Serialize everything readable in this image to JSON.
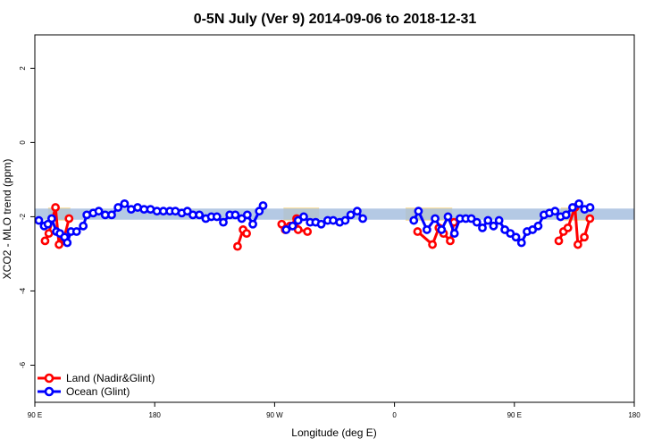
{
  "chart_data": {
    "type": "line",
    "title": "0-5N July (Ver 9)   2014-09-06 to 2018-12-31",
    "xlabel": "Longitude (deg E)",
    "ylabel": "XCO2 - MLO trend (ppm)",
    "xlim": [
      -90,
      180
    ],
    "ylim": [
      -7,
      2.9
    ],
    "xticks": [
      {
        "value": -90,
        "label": "90 E"
      },
      {
        "value": -36,
        "label": "180"
      },
      {
        "value": 18,
        "label": "90 W"
      },
      {
        "value": 72,
        "label": "0"
      },
      {
        "value": 126,
        "label": "90 E"
      },
      {
        "value": 180,
        "label": "180"
      }
    ],
    "yticks": [
      -6,
      -4,
      -2,
      0,
      2
    ],
    "grid": false,
    "legend": {
      "position": "bottom-left"
    },
    "band": {
      "ymin": -2.08,
      "ymax": -1.78,
      "color": "#a7bfdf"
    },
    "highlight_ranges": [
      [
        -84,
        -74
      ],
      [
        22,
        38
      ],
      [
        77,
        98
      ],
      [
        147,
        160
      ]
    ],
    "highlight_color": "#f9d98c",
    "series": [
      {
        "name": "Land (Nadir&Glint)",
        "color": "#ff0000",
        "points": [
          [
            -85.4,
            -2.65
          ],
          [
            -83.7,
            -2.45
          ],
          [
            -80.7,
            -1.75
          ],
          [
            -79.1,
            -2.75
          ],
          [
            -76.9,
            -2.6
          ],
          [
            -74.6,
            -2.05
          ],
          [
            1.3,
            -2.8
          ],
          [
            3.8,
            -2.35
          ],
          [
            5.4,
            -2.45
          ],
          [
            21.2,
            -2.2
          ],
          [
            22.8,
            -2.35
          ],
          [
            24.9,
            -2.25
          ],
          [
            27.9,
            -2.05
          ],
          [
            28.6,
            -2.35
          ],
          [
            32.8,
            -2.4
          ],
          [
            82.4,
            -2.4
          ],
          [
            89.1,
            -2.75
          ],
          [
            92.0,
            -2.3
          ],
          [
            94.1,
            -2.45
          ],
          [
            97.1,
            -2.65
          ],
          [
            98.8,
            -2.15
          ],
          [
            146.0,
            -2.65
          ],
          [
            148.1,
            -2.4
          ],
          [
            150.1,
            -2.3
          ],
          [
            153.3,
            -1.75
          ],
          [
            154.6,
            -2.75
          ],
          [
            157.5,
            -2.55
          ],
          [
            160.0,
            -2.05
          ]
        ]
      },
      {
        "name": "Ocean (Glint)",
        "color": "#0000ff",
        "points": [
          [
            -88.2,
            -2.1
          ],
          [
            -85.8,
            -2.25
          ],
          [
            -84.1,
            -2.2
          ],
          [
            -82.4,
            -2.05
          ],
          [
            -80.3,
            -2.4
          ],
          [
            -78.7,
            -2.45
          ],
          [
            -76.6,
            -2.55
          ],
          [
            -75.4,
            -2.7
          ],
          [
            -73.7,
            -2.4
          ],
          [
            -71.2,
            -2.4
          ],
          [
            -68.2,
            -2.25
          ],
          [
            -66.6,
            -1.95
          ],
          [
            -63.7,
            -1.9
          ],
          [
            -61.2,
            -1.85
          ],
          [
            -58.3,
            -1.95
          ],
          [
            -55.4,
            -1.95
          ],
          [
            -52.5,
            -1.75
          ],
          [
            -49.6,
            -1.65
          ],
          [
            -46.6,
            -1.8
          ],
          [
            -43.7,
            -1.75
          ],
          [
            -40.8,
            -1.8
          ],
          [
            -37.9,
            -1.8
          ],
          [
            -35.0,
            -1.85
          ],
          [
            -32.1,
            -1.85
          ],
          [
            -29.2,
            -1.85
          ],
          [
            -26.7,
            -1.85
          ],
          [
            -23.8,
            -1.9
          ],
          [
            -21.3,
            -1.85
          ],
          [
            -18.8,
            -1.95
          ],
          [
            -15.9,
            -1.95
          ],
          [
            -13.0,
            -2.05
          ],
          [
            -10.5,
            -2.0
          ],
          [
            -8.0,
            -2.0
          ],
          [
            -5.1,
            -2.15
          ],
          [
            -2.2,
            -1.95
          ],
          [
            0.3,
            -1.95
          ],
          [
            3.2,
            -2.05
          ],
          [
            5.7,
            -1.95
          ],
          [
            8.2,
            -2.2
          ],
          [
            11.1,
            -1.85
          ],
          [
            12.8,
            -1.7
          ],
          [
            23.2,
            -2.35
          ],
          [
            26.1,
            -2.25
          ],
          [
            28.6,
            -2.1
          ],
          [
            31.1,
            -2.0
          ],
          [
            34.0,
            -2.15
          ],
          [
            36.5,
            -2.15
          ],
          [
            39.0,
            -2.2
          ],
          [
            41.9,
            -2.1
          ],
          [
            44.4,
            -2.1
          ],
          [
            47.3,
            -2.15
          ],
          [
            49.8,
            -2.1
          ],
          [
            52.3,
            -1.95
          ],
          [
            55.2,
            -1.85
          ],
          [
            57.7,
            -2.05
          ],
          [
            80.7,
            -2.1
          ],
          [
            82.8,
            -1.85
          ],
          [
            86.6,
            -2.35
          ],
          [
            90.3,
            -2.05
          ],
          [
            93.2,
            -2.35
          ],
          [
            96.1,
            -2.0
          ],
          [
            99.0,
            -2.45
          ],
          [
            101.5,
            -2.05
          ],
          [
            104.1,
            -2.05
          ],
          [
            106.6,
            -2.05
          ],
          [
            109.1,
            -2.15
          ],
          [
            111.6,
            -2.3
          ],
          [
            114.1,
            -2.1
          ],
          [
            116.6,
            -2.25
          ],
          [
            119.1,
            -2.1
          ],
          [
            121.7,
            -2.35
          ],
          [
            124.2,
            -2.45
          ],
          [
            126.7,
            -2.55
          ],
          [
            129.2,
            -2.7
          ],
          [
            131.7,
            -2.4
          ],
          [
            134.2,
            -2.35
          ],
          [
            136.7,
            -2.25
          ],
          [
            139.3,
            -1.95
          ],
          [
            141.8,
            -1.9
          ],
          [
            144.3,
            -1.85
          ],
          [
            146.8,
            -2.0
          ],
          [
            149.3,
            -1.95
          ],
          [
            152.2,
            -1.75
          ],
          [
            155.1,
            -1.65
          ],
          [
            157.6,
            -1.8
          ],
          [
            160.1,
            -1.75
          ]
        ]
      }
    ]
  }
}
